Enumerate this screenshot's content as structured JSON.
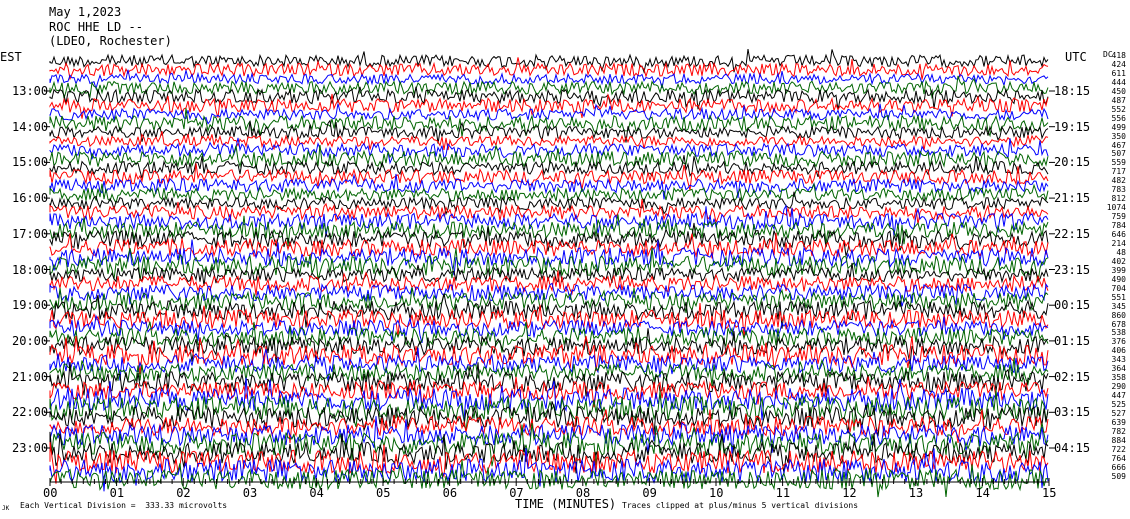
{
  "header": {
    "date": "May 1,2023",
    "station": "ROC HHE LD --",
    "network": "(LDEO, Rochester)"
  },
  "left_zone_label": "EST",
  "right_zone_label": "UTC",
  "corner_label": "DC",
  "chart_data": {
    "type": "line",
    "title": "May 1,2023 ROC HHE LD -- (LDEO, Rochester)",
    "xlabel": "TIME (MINUTES)",
    "ylabel": "",
    "x_ticks": [
      "00",
      "01",
      "02",
      "03",
      "04",
      "05",
      "06",
      "07",
      "08",
      "09",
      "10",
      "11",
      "12",
      "13",
      "14",
      "15"
    ],
    "xlim": [
      0,
      15
    ],
    "y_left_ticks": [
      "13:00",
      "14:00",
      "15:00",
      "16:00",
      "17:00",
      "18:00",
      "19:00",
      "20:00",
      "21:00",
      "22:00",
      "23:00"
    ],
    "y_right_ticks": [
      "18:15",
      "19:15",
      "20:15",
      "21:15",
      "22:15",
      "23:15",
      "00:15",
      "01:15",
      "02:15",
      "03:15",
      "04:15"
    ],
    "row_offsets": [
      "418",
      "424",
      "611",
      "444",
      "450",
      "487",
      "552",
      "556",
      "499",
      "350",
      "467",
      "507",
      "559",
      "717",
      "482",
      "783",
      "812",
      "1074",
      "759",
      "784",
      "646",
      "214",
      "48",
      "402",
      "399",
      "490",
      "704",
      "551",
      "345",
      "860",
      "678",
      "538",
      "376",
      "406",
      "343",
      "364",
      "358",
      "290",
      "447",
      "525",
      "527",
      "639",
      "782",
      "884",
      "722",
      "764",
      "666",
      "509"
    ],
    "trace_colors": [
      "#000000",
      "#ff0000",
      "#0000ff",
      "#006400"
    ],
    "footer": {
      "scale_note": "Each Vertical Division =  333.33 microvolts",
      "clip_note": "Traces clipped at plus/minus 5 vertical divisions",
      "corner_mark": "JK"
    }
  }
}
